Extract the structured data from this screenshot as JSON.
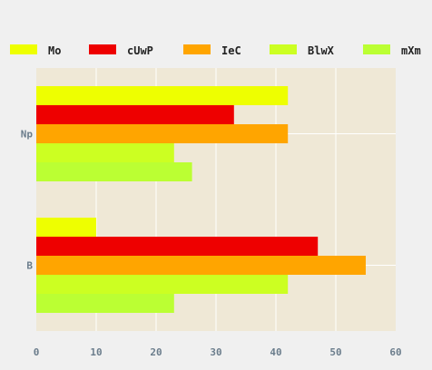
{
  "chart_data": {
    "type": "bar",
    "orientation": "horizontal",
    "categories": [
      "Np",
      "B"
    ],
    "series": [
      {
        "name": "Mo",
        "color": "#eeff00",
        "values": [
          42,
          10
        ]
      },
      {
        "name": "cUwP",
        "color": "#ee0000",
        "values": [
          33,
          47
        ]
      },
      {
        "name": "IeC",
        "color": "#ffa500",
        "values": [
          42,
          55
        ]
      },
      {
        "name": "BlwX",
        "color": "#ccff22",
        "values": [
          23,
          42
        ]
      },
      {
        "name": "mXm",
        "color": "#bbff33",
        "values": [
          26,
          23
        ]
      }
    ],
    "x_ticks": [
      "0",
      "10",
      "20",
      "30",
      "40",
      "50",
      "60"
    ],
    "xlim": [
      0,
      60
    ],
    "grid": true,
    "legend_position": "top",
    "plot_background": "#efe8d6",
    "grid_color": "#ffffff"
  }
}
